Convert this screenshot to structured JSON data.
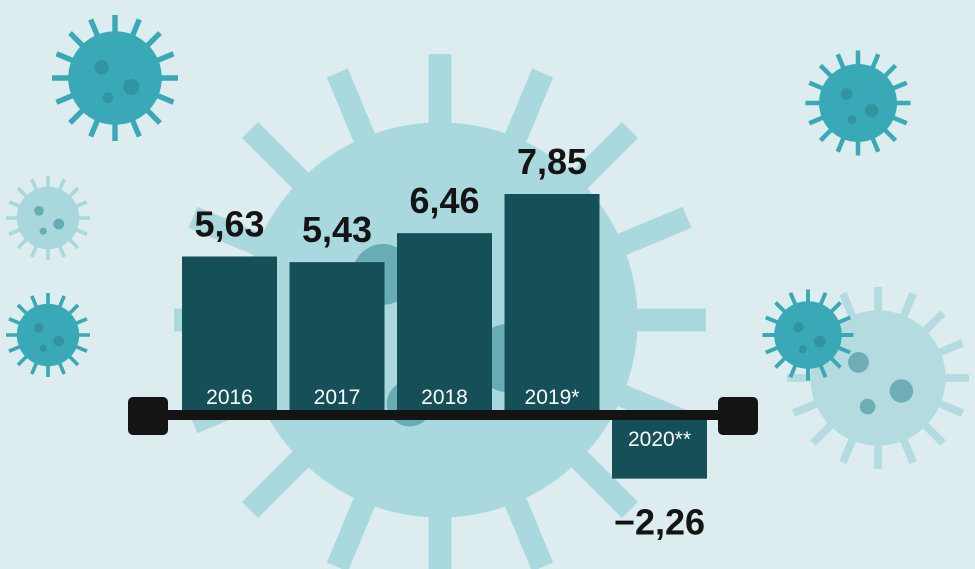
{
  "chart_data": {
    "type": "bar",
    "categories": [
      "2016",
      "2017",
      "2018",
      "2019*",
      "2020**"
    ],
    "values": [
      5.63,
      5.43,
      6.46,
      7.85,
      -2.26
    ],
    "value_labels": [
      "5,63",
      "5,43",
      "6,46",
      "7,85",
      "−2,26"
    ],
    "color": "#154f57"
  }
}
